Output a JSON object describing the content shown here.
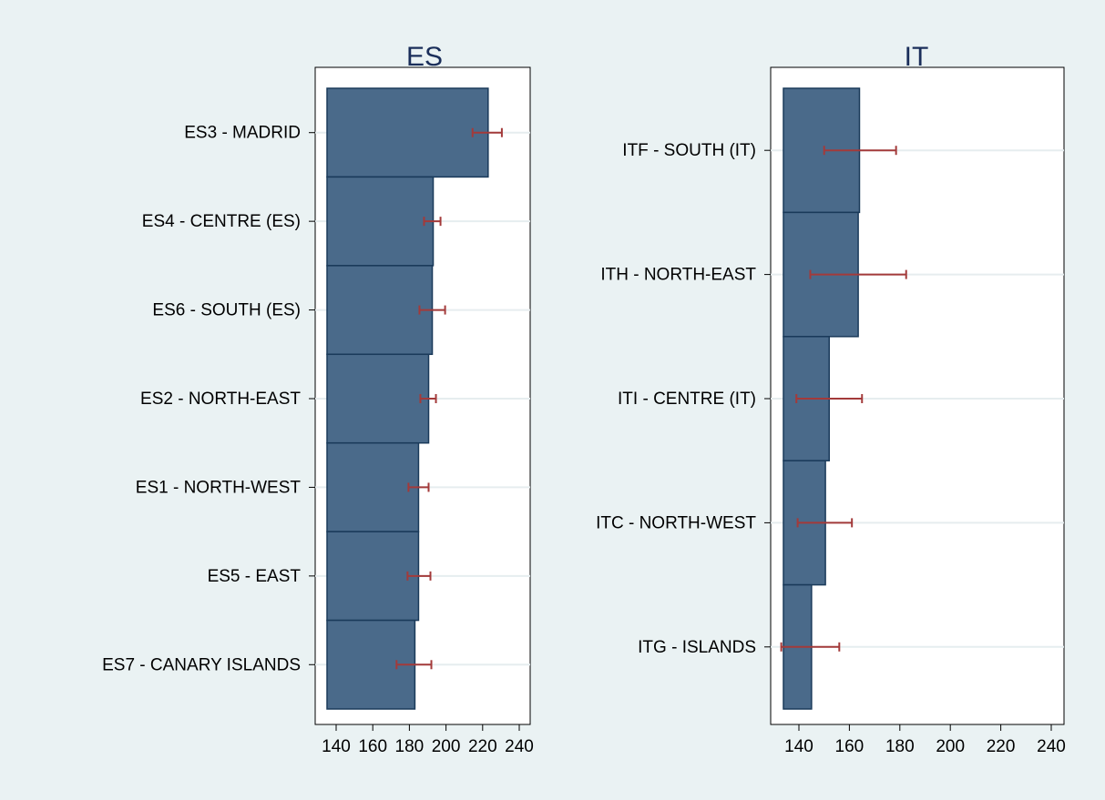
{
  "chart_data": [
    {
      "type": "bar",
      "orientation": "horizontal",
      "title": "ES",
      "xlim": [
        133,
        245
      ],
      "xticks": [
        140,
        160,
        180,
        200,
        220,
        240
      ],
      "grid": true,
      "bar_color": "#4a6a8a",
      "error_color": "#a33a3a",
      "categories": [
        "ES3 - MADRID",
        "ES4 - CENTRE (ES)",
        "ES6 - SOUTH (ES)",
        "ES2 - NORTH-EAST",
        "ES1 - NORTH-WEST",
        "ES5 - EAST",
        "ES7 - CANARY ISLANDS"
      ],
      "values": [
        223,
        193,
        192.5,
        190.5,
        185,
        185,
        183
      ],
      "error_low": [
        214.5,
        188,
        185.5,
        186,
        179.5,
        179,
        173
      ],
      "error_high": [
        230.5,
        197,
        199.5,
        194.5,
        190.5,
        191.5,
        192
      ]
    },
    {
      "type": "bar",
      "orientation": "horizontal",
      "title": "IT",
      "xlim": [
        133,
        245
      ],
      "xticks": [
        140,
        160,
        180,
        200,
        220,
        240
      ],
      "grid": true,
      "bar_color": "#4a6a8a",
      "error_color": "#a33a3a",
      "categories": [
        "ITF - SOUTH (IT)",
        "ITH - NORTH-EAST",
        "ITI - CENTRE (IT)",
        "ITC - NORTH-WEST",
        "ITG - ISLANDS"
      ],
      "values": [
        164,
        163.5,
        152,
        150.5,
        145
      ],
      "error_low": [
        150,
        144.5,
        139,
        139.5,
        133
      ],
      "error_high": [
        178.5,
        182.5,
        165,
        161,
        156
      ]
    }
  ]
}
